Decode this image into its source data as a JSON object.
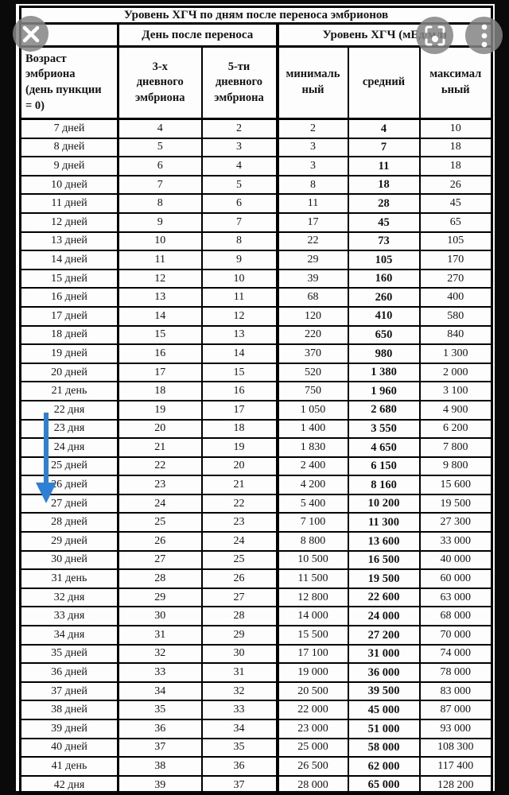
{
  "title": "Уровень ХГЧ по дням после переноса эмбрионов",
  "overlay": {
    "icons": {
      "close": "close-x",
      "lens": "lens-viewfinder",
      "menu": "vertical-three-dots"
    }
  },
  "colors": {
    "arrow_blue": "#2e7fd6",
    "overlay_gray": "rgba(132,132,132,0.85)",
    "paper": "#fdfdfd",
    "border": "#000000"
  },
  "table": {
    "group_headers": {
      "day_after_transfer": "День после переноса",
      "hcg_level": "Уровень ХГЧ (мЕд/мл)"
    },
    "col_headers": {
      "age": "Возраст\nэмбриона\n(день пункции\n= 0)",
      "d3": "3-х\nдневного\nэмбриона",
      "d5": "5-ти\nдневного\nэмбриона",
      "min": "минималь\nный",
      "avg": "средний",
      "max": "максимал\nьный"
    },
    "rows": [
      {
        "label": "7 дней",
        "d3": "4",
        "d5": "2",
        "min": "2",
        "avg": "4",
        "max": "10"
      },
      {
        "label": "8 дней",
        "d3": "5",
        "d5": "3",
        "min": "3",
        "avg": "7",
        "max": "18"
      },
      {
        "label": "9 дней",
        "d3": "6",
        "d5": "4",
        "min": "3",
        "avg": "11",
        "max": "18"
      },
      {
        "label": "10 дней",
        "d3": "7",
        "d5": "5",
        "min": "8",
        "avg": "18",
        "max": "26"
      },
      {
        "label": "11 дней",
        "d3": "8",
        "d5": "6",
        "min": "11",
        "avg": "28",
        "max": "45"
      },
      {
        "label": "12 дней",
        "d3": "9",
        "d5": "7",
        "min": "17",
        "avg": "45",
        "max": "65"
      },
      {
        "label": "13 дней",
        "d3": "10",
        "d5": "8",
        "min": "22",
        "avg": "73",
        "max": "105"
      },
      {
        "label": "14 дней",
        "d3": "11",
        "d5": "9",
        "min": "29",
        "avg": "105",
        "max": "170"
      },
      {
        "label": "15 дней",
        "d3": "12",
        "d5": "10",
        "min": "39",
        "avg": "160",
        "max": "270"
      },
      {
        "label": "16 дней",
        "d3": "13",
        "d5": "11",
        "min": "68",
        "avg": "260",
        "max": "400"
      },
      {
        "label": "17 дней",
        "d3": "14",
        "d5": "12",
        "min": "120",
        "avg": "410",
        "max": "580"
      },
      {
        "label": "18 дней",
        "d3": "15",
        "d5": "13",
        "min": "220",
        "avg": "650",
        "max": "840"
      },
      {
        "label": "19 дней",
        "d3": "16",
        "d5": "14",
        "min": "370",
        "avg": "980",
        "max": "1 300"
      },
      {
        "label": "20 дней",
        "d3": "17",
        "d5": "15",
        "min": "520",
        "avg": "1 380",
        "max": "2 000"
      },
      {
        "label": "21 день",
        "d3": "18",
        "d5": "16",
        "min": "750",
        "avg": "1 960",
        "max": "3 100"
      },
      {
        "label": "22 дня",
        "d3": "19",
        "d5": "17",
        "min": "1 050",
        "avg": "2 680",
        "max": "4 900"
      },
      {
        "label": "23 дня",
        "d3": "20",
        "d5": "18",
        "min": "1 400",
        "avg": "3 550",
        "max": "6 200"
      },
      {
        "label": "24 дня",
        "d3": "21",
        "d5": "19",
        "min": "1 830",
        "avg": "4 650",
        "max": "7 800"
      },
      {
        "label": "25 дней",
        "d3": "22",
        "d5": "20",
        "min": "2 400",
        "avg": "6 150",
        "max": "9 800"
      },
      {
        "label": "26 дней",
        "d3": "23",
        "d5": "21",
        "min": "4 200",
        "avg": "8 160",
        "max": "15 600"
      },
      {
        "label": "27 дней",
        "d3": "24",
        "d5": "22",
        "min": "5 400",
        "avg": "10 200",
        "max": "19 500"
      },
      {
        "label": "28 дней",
        "d3": "25",
        "d5": "23",
        "min": "7 100",
        "avg": "11 300",
        "max": "27 300"
      },
      {
        "label": "29 дней",
        "d3": "26",
        "d5": "24",
        "min": "8 800",
        "avg": "13 600",
        "max": "33 000"
      },
      {
        "label": "30 дней",
        "d3": "27",
        "d5": "25",
        "min": "10 500",
        "avg": "16 500",
        "max": "40 000"
      },
      {
        "label": "31 день",
        "d3": "28",
        "d5": "26",
        "min": "11 500",
        "avg": "19 500",
        "max": "60 000"
      },
      {
        "label": "32 дня",
        "d3": "29",
        "d5": "27",
        "min": "12 800",
        "avg": "22 600",
        "max": "63 000"
      },
      {
        "label": "33 дня",
        "d3": "30",
        "d5": "28",
        "min": "14 000",
        "avg": "24 000",
        "max": "68 000"
      },
      {
        "label": "34 дня",
        "d3": "31",
        "d5": "29",
        "min": "15 500",
        "avg": "27 200",
        "max": "70 000"
      },
      {
        "label": "35 дней",
        "d3": "32",
        "d5": "30",
        "min": "17 100",
        "avg": "31 000",
        "max": "74 000"
      },
      {
        "label": "36 дней",
        "d3": "33",
        "d5": "31",
        "min": "19 000",
        "avg": "36 000",
        "max": "78 000"
      },
      {
        "label": "37 дней",
        "d3": "34",
        "d5": "32",
        "min": "20 500",
        "avg": "39 500",
        "max": "83 000"
      },
      {
        "label": "38 дней",
        "d3": "35",
        "d5": "33",
        "min": "22 000",
        "avg": "45 000",
        "max": "87 000"
      },
      {
        "label": "39 дней",
        "d3": "36",
        "d5": "34",
        "min": "23 000",
        "avg": "51 000",
        "max": "93 000"
      },
      {
        "label": "40 дней",
        "d3": "37",
        "d5": "35",
        "min": "25 000",
        "avg": "58 000",
        "max": "108 300"
      },
      {
        "label": "41 день",
        "d3": "38",
        "d5": "36",
        "min": "26 500",
        "avg": "62 000",
        "max": "117 400"
      },
      {
        "label": "42 дня",
        "d3": "39",
        "d5": "37",
        "min": "28 000",
        "avg": "65 000",
        "max": "128 200"
      }
    ]
  }
}
